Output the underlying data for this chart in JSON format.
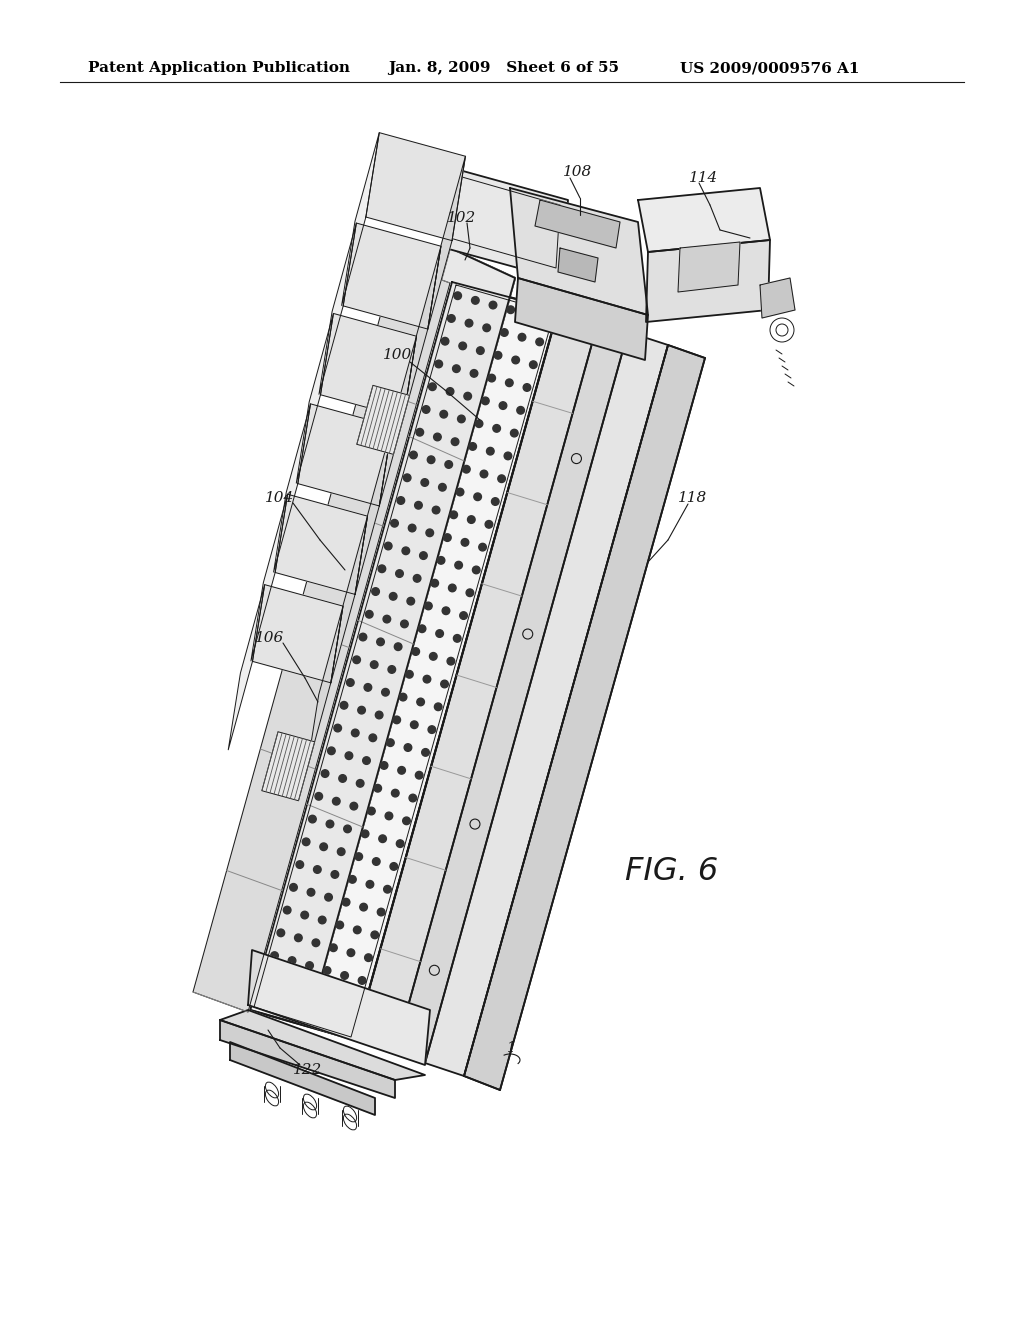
{
  "bg_color": "#ffffff",
  "header_text_left": "Patent Application Publication",
  "header_text_mid": "Jan. 8, 2009   Sheet 6 of 55",
  "header_text_right": "US 2009/0009576 A1",
  "fig_label": "FIG. 6",
  "header_font_size": 11,
  "label_font_size": 11,
  "lw_main": 1.3,
  "lw_thin": 0.7,
  "lw_thick": 2.0,
  "gray_light": "#f0f0f0",
  "gray_mid": "#d8d8d8",
  "gray_dark": "#b0b0b0",
  "black": "#1a1a1a"
}
